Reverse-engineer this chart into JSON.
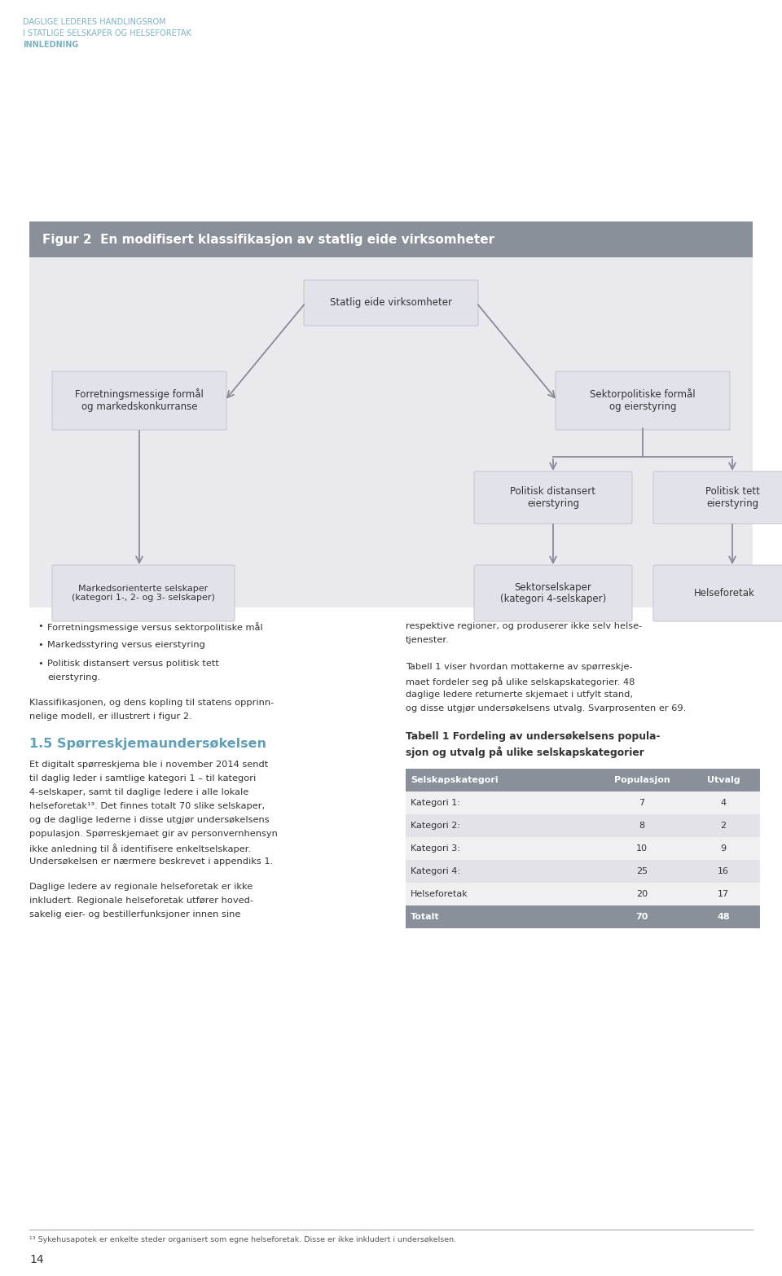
{
  "page_bg": "#ffffff",
  "header_line1": "DAGLIGE LEDERES HANDLINGSROM",
  "header_line2": "I STATLIGE SELSKAPER OG HELSEFORETAK",
  "header_line3": "INNLEDNING",
  "header_color": "#7bb3c0",
  "page_number": "14",
  "fig_title_bg": "#8a9099",
  "fig_title_text": "Figur 2  En modifisert klassifikasjon av statlig eide virksomheter",
  "fig_title_text_color": "#ffffff",
  "diagram_bg": "#eaeaee",
  "box_bg": "#e2e2ea",
  "box_border": "#c8c8d0",
  "arrow_color": "#8a8a9a",
  "bullet_title_left": "1.5 Spørreskjemaundersøkelsen",
  "bullet_title_color": "#5fa0b8",
  "bullets": [
    "Forretningsmessige versus sektorpolitiske mål",
    "Markedsstyring versus eierstyring",
    "Politisk distansert versus politisk tett\neierstyring."
  ],
  "body_text_left_1": "Klassifikasjonen, og dens kopling til statens opprinnelige modell, er illustrert i figur 2.",
  "body_text_left_2": "Et digitalt spørreskjema ble i november 2014 sendt til daglig leder i samtlige kategori 1 – til kategori 4-selskaper, samt til daglige ledere i alle lokale helseforetak¹³. Det finnes totalt 70 slike selskaper, og de daglige lederne i disse utgjør undersøkelsens populasjon. Spørreskjemaet gir av personvernhensyn ikke anledning til å identifisere enkeltselskaper. Undersøkelsen er nærmere beskrevet i appendiks 1.",
  "body_text_left_3": "Daglige ledere av regionale helseforetak er ikke inkludert. Regionale helseforetak utfører hoved-\nsakelig eier- og bestillerfunksjoner innen sine",
  "body_text_right_1": "respektive regioner, og produserer ikke selv helse-\ntjenester.",
  "body_text_right_2": "Tabell 1 viser hvordan mottakerne av spørreskjemaet fordeler seg på ulike selskapskategorier. 48 daglige ledere returnerte skjemaet i utfylt stand, og disse utgjør undersøkelsens utvalg. Svarprosenten er 69.",
  "table_title": "Tabell 1 Fordeling av undersøkelsens populasjon og utvalg på ulike selskapskategorier",
  "table_header_bg": "#8a9099",
  "table_header_color": "#ffffff",
  "table_row_bg_odd": "#f0f0f2",
  "table_row_bg_even": "#e2e2e8",
  "table_headers": [
    "Selskapskategori",
    "Populasjon",
    "Utvalg"
  ],
  "table_rows": [
    [
      "Kategori 1:",
      "7",
      "4"
    ],
    [
      "Kategori 2:",
      "8",
      "2"
    ],
    [
      "Kategori 3:",
      "10",
      "9"
    ],
    [
      "Kategori 4:",
      "25",
      "16"
    ],
    [
      "Helseforetak",
      "20",
      "17"
    ],
    [
      "Totalt",
      "70",
      "48"
    ]
  ],
  "table_totalt_bg": "#8a9099",
  "table_totalt_color": "#ffffff",
  "footnote": "¹³ Sykehusapotek er enkelte steder organisert som egne helseforetak. Disse er ikke inkludert i undersøkelsen."
}
